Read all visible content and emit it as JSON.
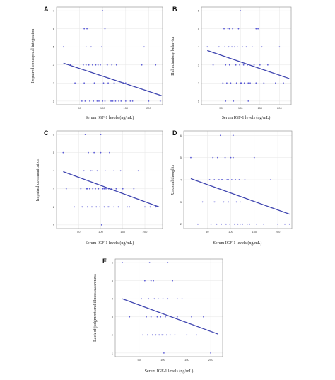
{
  "chart_data": [
    {
      "panel": "A",
      "type": "scatter",
      "xlabel": "Serum IGF-1 levels (ng/mL)",
      "ylabel": "Impaired conceptual integration",
      "xlim": [
        0,
        230
      ],
      "ylim": [
        1.8,
        7.2
      ],
      "xticks": [
        50,
        100,
        150,
        200
      ],
      "yticks": [
        2,
        3,
        4,
        5,
        6,
        7
      ],
      "trend": {
        "x": [
          15,
          228
        ],
        "y": [
          4.1,
          2.3
        ]
      },
      "points": {
        "x": [
          15,
          30,
          40,
          55,
          58,
          60,
          62,
          64,
          66,
          70,
          72,
          75,
          78,
          80,
          82,
          85,
          88,
          90,
          92,
          95,
          98,
          100,
          102,
          105,
          110,
          112,
          118,
          120,
          122,
          125,
          128,
          130,
          135,
          140,
          145,
          150,
          160,
          165,
          185,
          190,
          200,
          215,
          225,
          60,
          64,
          100,
          105,
          110,
          120,
          150
        ],
        "y": [
          5,
          4,
          3,
          2,
          4,
          6,
          2,
          4,
          6,
          4,
          2,
          5,
          4,
          2,
          3,
          4,
          2,
          4,
          2,
          4,
          5,
          2,
          3,
          2,
          4,
          3,
          2,
          4,
          2,
          3,
          2,
          4,
          2,
          2,
          3,
          2,
          2,
          2,
          4,
          5,
          2,
          4,
          2,
          3,
          5,
          7,
          6,
          4,
          2,
          3
        ]
      }
    },
    {
      "panel": "B",
      "type": "scatter",
      "xlabel": "Serum IGF-1 levels (ng/mL)",
      "ylabel": "Hallucinatory behavior",
      "xlim": [
        0,
        230
      ],
      "ylim": [
        0.8,
        6.2
      ],
      "xticks": [
        50,
        100,
        150,
        200
      ],
      "yticks": [
        1,
        2,
        3,
        4,
        5,
        6
      ],
      "trend": {
        "x": [
          15,
          225
        ],
        "y": [
          3.8,
          2.25
        ]
      },
      "points": {
        "x": [
          15,
          30,
          45,
          55,
          58,
          60,
          62,
          65,
          68,
          70,
          72,
          75,
          78,
          80,
          82,
          85,
          88,
          90,
          92,
          95,
          98,
          100,
          102,
          105,
          108,
          110,
          115,
          118,
          120,
          125,
          130,
          135,
          140,
          145,
          150,
          155,
          160,
          170,
          190,
          200,
          210,
          62,
          72,
          88,
          100,
          120,
          140
        ],
        "y": [
          4,
          3,
          4,
          2,
          5,
          4,
          3,
          2,
          5,
          4,
          3,
          2,
          4,
          5,
          1,
          4,
          3,
          2,
          4,
          5,
          3,
          6,
          2,
          4,
          3,
          2,
          4,
          3,
          1,
          2,
          4,
          3,
          2,
          5,
          3,
          4,
          2,
          3,
          2,
          4,
          2,
          1,
          5,
          3,
          2,
          2,
          5
        ]
      }
    },
    {
      "panel": "C",
      "type": "scatter",
      "xlabel": "Serum IGF-1 levels (ng/mL)",
      "ylabel": "Impaired communication",
      "xlim": [
        0,
        240
      ],
      "ylim": [
        0.8,
        6.2
      ],
      "xticks": [
        50,
        100,
        150,
        200
      ],
      "yticks": [
        1,
        2,
        3,
        4,
        5,
        6
      ],
      "trend": {
        "x": [
          15,
          232
        ],
        "y": [
          3.95,
          2.0
        ]
      },
      "points": {
        "x": [
          15,
          22,
          40,
          55,
          58,
          62,
          65,
          68,
          70,
          72,
          75,
          78,
          80,
          82,
          85,
          88,
          90,
          92,
          95,
          98,
          100,
          102,
          105,
          108,
          110,
          112,
          115,
          118,
          120,
          125,
          130,
          135,
          140,
          145,
          150,
          160,
          165,
          175,
          185,
          200,
          212,
          225,
          70,
          82,
          100,
          108,
          118,
          130
        ],
        "y": [
          5,
          3,
          2,
          3,
          2,
          4,
          6,
          3,
          2,
          5,
          3,
          4,
          2,
          3,
          5,
          3,
          2,
          4,
          3,
          2,
          6,
          1,
          3,
          2,
          4,
          3,
          2,
          3,
          5,
          3,
          2,
          3,
          2,
          4,
          3,
          2,
          2,
          3,
          4,
          2,
          2,
          2,
          3,
          4,
          5,
          3,
          2,
          4
        ]
      }
    },
    {
      "panel": "D",
      "type": "scatter",
      "xlabel": "Serum IGF-1 levels (ng/mL)",
      "ylabel": "Unusual thoughts",
      "xlim": [
        0,
        230
      ],
      "ylim": [
        1.8,
        6.2
      ],
      "xticks": [
        50,
        100,
        150,
        200
      ],
      "yticks": [
        2,
        3,
        4,
        5,
        6
      ],
      "trend": {
        "x": [
          15,
          225
        ],
        "y": [
          4.05,
          2.45
        ]
      },
      "points": {
        "x": [
          15,
          30,
          40,
          55,
          58,
          62,
          65,
          68,
          70,
          72,
          75,
          78,
          80,
          82,
          85,
          88,
          90,
          92,
          95,
          98,
          100,
          102,
          105,
          108,
          110,
          112,
          115,
          118,
          120,
          125,
          130,
          140,
          145,
          150,
          155,
          160,
          170,
          185,
          200,
          215,
          225,
          65,
          80,
          95,
          105,
          120,
          135
        ],
        "y": [
          5,
          2,
          3,
          4,
          2,
          5,
          4,
          3,
          2,
          5,
          4,
          6,
          2,
          4,
          3,
          5,
          2,
          4,
          3,
          2,
          5,
          4,
          6,
          2,
          4,
          3,
          2,
          4,
          3,
          2,
          4,
          2,
          3,
          5,
          2,
          3,
          2,
          4,
          2,
          2,
          2,
          3,
          4,
          4,
          5,
          2,
          2
        ]
      }
    },
    {
      "panel": "E",
      "type": "scatter",
      "xlabel": "Serum IGF-1 levels (ng/mL)",
      "ylabel": "Lack of judgment and illness awareness",
      "xlim": [
        0,
        225
      ],
      "ylim": [
        0.8,
        6.2
      ],
      "xticks": [
        50,
        100,
        150,
        200
      ],
      "yticks": [
        1,
        2,
        3,
        4,
        5,
        6
      ],
      "trend": {
        "x": [
          15,
          215
        ],
        "y": [
          4.0,
          2.05
        ]
      },
      "points": {
        "x": [
          15,
          30,
          55,
          58,
          62,
          65,
          68,
          70,
          72,
          75,
          78,
          80,
          82,
          85,
          88,
          90,
          92,
          95,
          98,
          100,
          102,
          105,
          108,
          110,
          115,
          120,
          125,
          130,
          140,
          150,
          160,
          170,
          185,
          200,
          65,
          75,
          90,
          100,
          110,
          130
        ],
        "y": [
          6,
          3,
          4,
          2,
          5,
          3,
          2,
          4,
          6,
          3,
          2,
          5,
          4,
          2,
          3,
          4,
          2,
          3,
          2,
          4,
          1,
          3,
          2,
          4,
          2,
          5,
          2,
          3,
          4,
          2,
          3,
          2,
          3,
          1,
          3,
          5,
          4,
          2,
          6,
          4
        ]
      }
    }
  ],
  "colors": {
    "points": "#5b5bd6",
    "trend": "#3f45b0",
    "frame": "#888888",
    "grid": "#e6e6e6"
  }
}
